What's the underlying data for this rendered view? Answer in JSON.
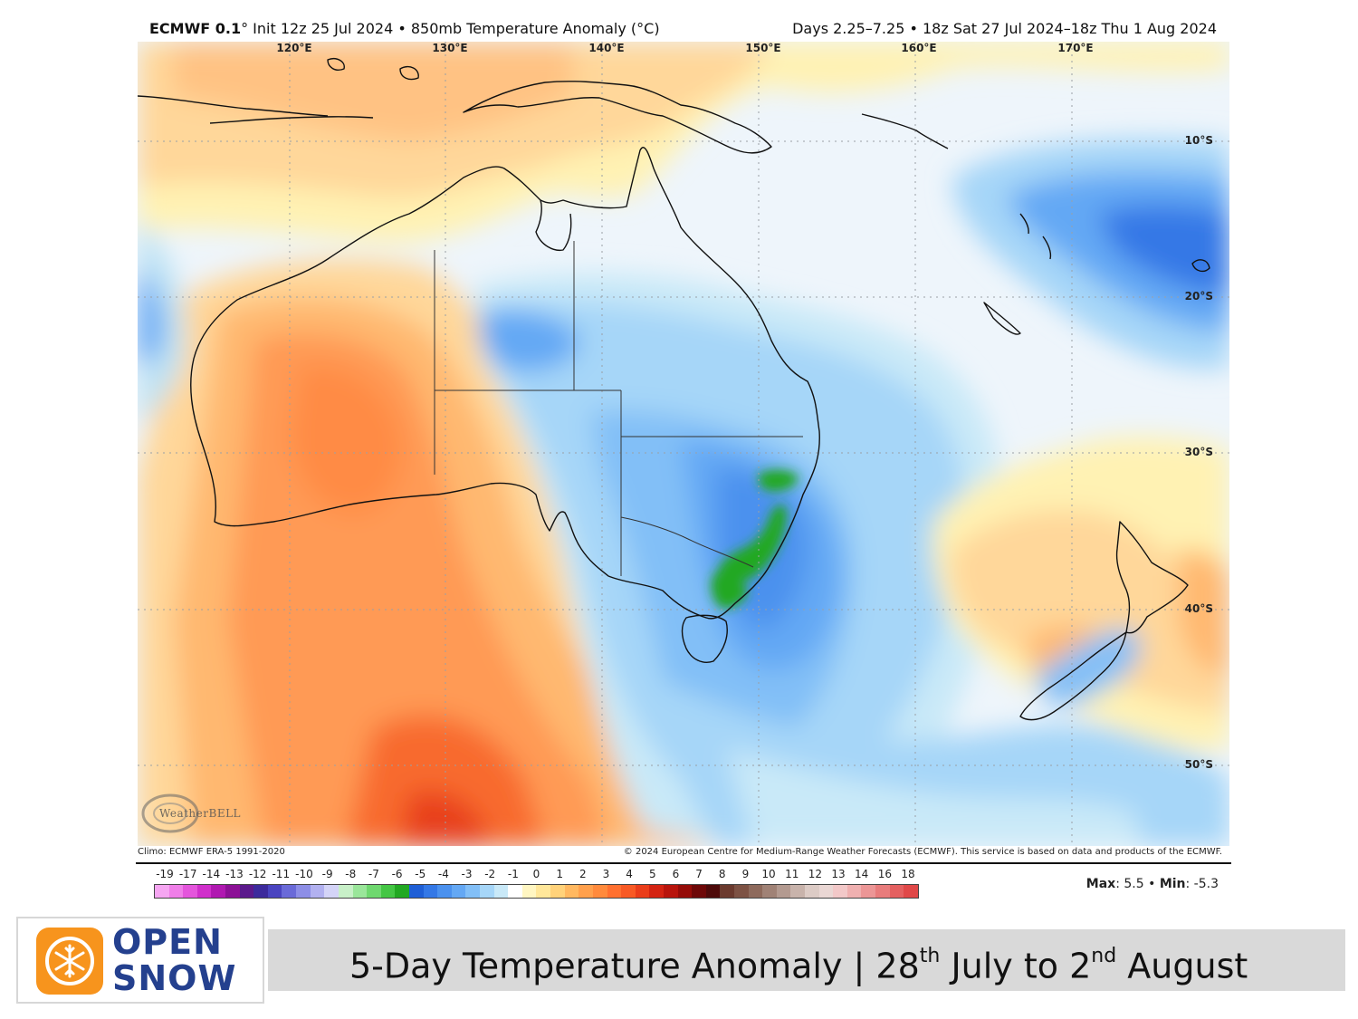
{
  "header": {
    "model": "ECMWF 0.1",
    "init": "° Init 12z 25 Jul 2024 • 850mb Temperature Anomaly (°C)",
    "period": "Days 2.25–7.25 • 18z Sat 27 Jul 2024–18z Thu 1 Aug 2024"
  },
  "graticule": {
    "longitudes": [
      "120°E",
      "130°E",
      "140°E",
      "150°E",
      "160°E",
      "170°E"
    ],
    "latitudes": [
      "10°S",
      "20°S",
      "30°S",
      "40°S",
      "50°S"
    ]
  },
  "map": {
    "watermark": "WeatherBELL",
    "region": "Australia and New Zealand"
  },
  "footer": {
    "climo": "Climo: ECMWF ERA-5 1991-2020",
    "copyright": "© 2024 European Centre for Medium-Range Weather Forecasts (ECMWF). This service is based on data and products of the ECMWF."
  },
  "colorbar": {
    "labels": [
      "-19",
      "-17",
      "-14",
      "-13",
      "-12",
      "-11",
      "-10",
      "-9",
      "-8",
      "-7",
      "-6",
      "-5",
      "-4",
      "-3",
      "-2",
      "-1",
      "0",
      "1",
      "2",
      "3",
      "4",
      "5",
      "6",
      "7",
      "8",
      "9",
      "10",
      "11",
      "12",
      "13",
      "14",
      "16",
      "18"
    ],
    "colors": [
      "#f6a6f2",
      "#ef7ee8",
      "#e455dc",
      "#d02fcb",
      "#b019b1",
      "#8c1196",
      "#5b1a8c",
      "#3c2a9c",
      "#4a44c0",
      "#6a6ad8",
      "#8d8ee6",
      "#b2b1f0",
      "#d4d4f7",
      "#c8f0c8",
      "#9ae69a",
      "#6fd86f",
      "#44c644",
      "#22a822",
      "#1f5fd6",
      "#3478e6",
      "#4b91ee",
      "#64a8f4",
      "#82bff7",
      "#a6d6f8",
      "#c9e9f8",
      "#ffffff",
      "#fff6c2",
      "#ffe79a",
      "#ffd27a",
      "#ffb860",
      "#ffa04c",
      "#ff8a3c",
      "#ff7030",
      "#f85a25",
      "#ea3d1a",
      "#d42312",
      "#b8140c",
      "#950c08",
      "#6e0808",
      "#4e0a0a",
      "#6b3a2e",
      "#7d5244",
      "#8e6a5c",
      "#a08276",
      "#b39a90",
      "#c8b3ab",
      "#dccbc5",
      "#ead7d4",
      "#f2c8c8",
      "#efb0b0",
      "#ec9696",
      "#e87c7c",
      "#e46060",
      "#e04848"
    ]
  },
  "stats": {
    "max_label": "Max",
    "max_value": ": 5.5 • ",
    "min_label": "Min",
    "min_value": ": -5.3"
  },
  "brand": {
    "line1": "OPEN",
    "line2": "SNOW"
  },
  "banner": {
    "part1": "5-Day Temperature Anomaly | 28",
    "sup1": "th",
    "part2": " July to 2",
    "sup2": "nd",
    "part3": " August"
  }
}
